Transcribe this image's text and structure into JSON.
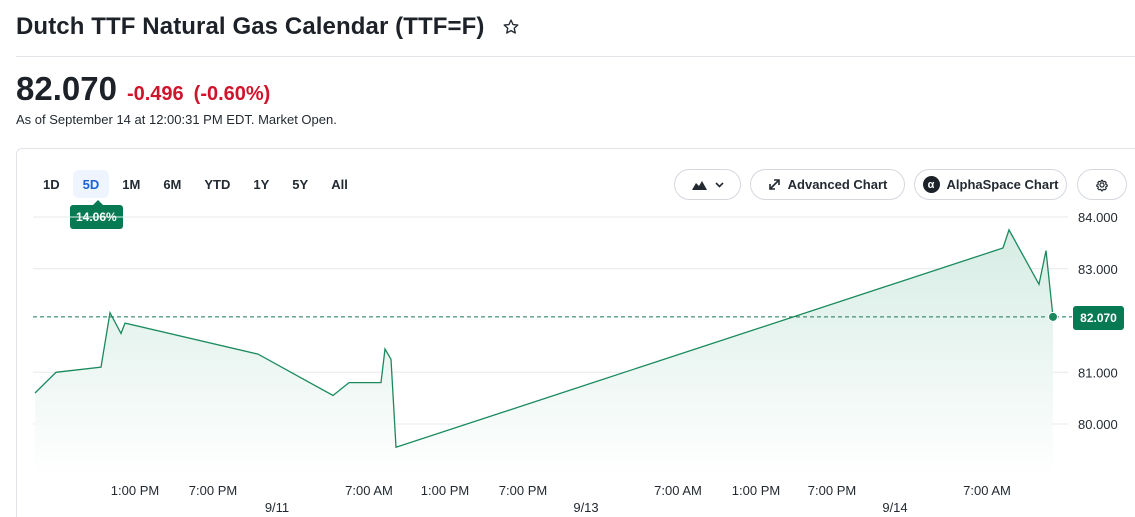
{
  "header": {
    "title": "Dutch TTF Natural Gas Calendar (TTF=F)",
    "watchlist_icon": "star-outline-icon"
  },
  "quote": {
    "price": "82.070",
    "change": "-0.496",
    "change_percent": "(-0.60%)",
    "as_of": "As of September 14 at 12:00:31 PM EDT. Market Open.",
    "change_color": "#d0142b"
  },
  "range_tabs": [
    {
      "label": "1D",
      "active": false
    },
    {
      "label": "5D",
      "active": true
    },
    {
      "label": "1M",
      "active": false
    },
    {
      "label": "6M",
      "active": false
    },
    {
      "label": "YTD",
      "active": false
    },
    {
      "label": "1Y",
      "active": false
    },
    {
      "label": "5Y",
      "active": false
    },
    {
      "label": "All",
      "active": false
    }
  ],
  "performance_badge": "14.06%",
  "toolbar": {
    "chart_type_icon": "mountain-chart-icon",
    "advanced_chart_label": "Advanced Chart",
    "alphaspace_label": "AlphaSpace Chart",
    "alphaspace_logo_glyph": "α",
    "settings_icon": "gear-icon"
  },
  "chart_data": {
    "type": "area",
    "title": "",
    "xlabel": "",
    "ylabel": "",
    "ylim": [
      79,
      84
    ],
    "y_ticks": [
      "84.000",
      "83.000",
      "81.000",
      "80.000"
    ],
    "y_tick_values": [
      84,
      83,
      81,
      80
    ],
    "x_tick_labels": [
      {
        "label": "1:00 PM",
        "date": ""
      },
      {
        "label": "7:00 PM",
        "date": ""
      },
      {
        "label": "7:00 AM",
        "date": "9/11"
      },
      {
        "label": "1:00 PM",
        "date": ""
      },
      {
        "label": "7:00 PM",
        "date": ""
      },
      {
        "label": "7:00 AM",
        "date": "9/13"
      },
      {
        "label": "1:00 PM",
        "date": ""
      },
      {
        "label": "7:00 PM",
        "date": ""
      },
      {
        "label": "7:00 AM",
        "date": "9/14"
      }
    ],
    "series": [
      {
        "values": [
          80.6,
          81.0,
          81.1,
          82.15,
          81.75,
          81.95,
          81.35,
          80.55,
          80.8,
          80.8,
          81.45,
          81.25,
          79.55,
          83.4,
          83.75,
          82.7,
          83.35,
          82.07
        ]
      }
    ],
    "previous_close": 82.566,
    "current_price_label": "82.070",
    "line_color": "#1a8a5e",
    "fill_color": "#e2f1ec",
    "grid": true,
    "previous_close_line": "dashed"
  }
}
